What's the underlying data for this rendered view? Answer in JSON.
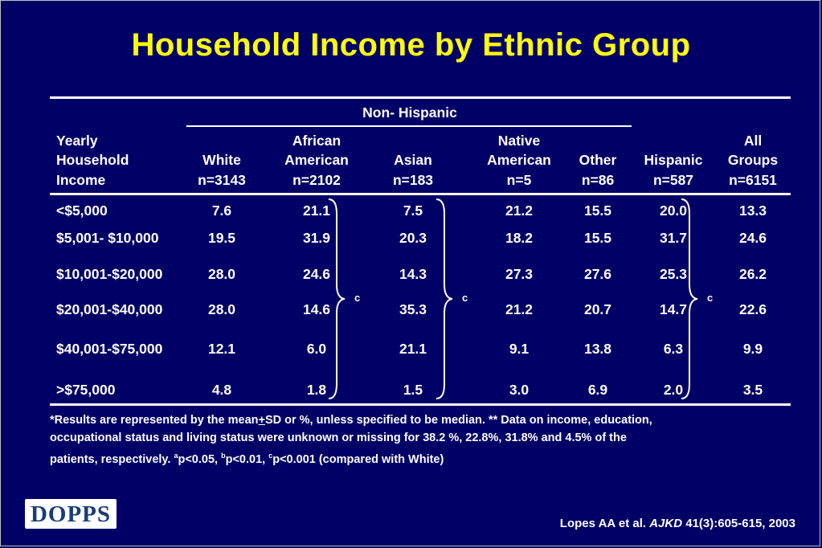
{
  "title": "Household Income by Ethnic Group",
  "group_header": "Non- Hispanic",
  "row_header": [
    "Yearly",
    "Household",
    "Income"
  ],
  "columns": [
    {
      "l1": "",
      "l2": "White",
      "n": "n=3143"
    },
    {
      "l1": "African",
      "l2": "American",
      "n": "n=2102"
    },
    {
      "l1": "",
      "l2": "Asian",
      "n": "n=183"
    },
    {
      "l1": "Native",
      "l2": "American",
      "n": "n=5"
    },
    {
      "l1": "",
      "l2": "Other",
      "n": "n=86"
    },
    {
      "l1": "",
      "l2": "Hispanic",
      "n": "n=587"
    },
    {
      "l1": "All",
      "l2": "Groups",
      "n": "n=6151"
    }
  ],
  "rows": [
    {
      "label": "<$5,000",
      "values": [
        "7.6",
        "21.1",
        "7.5",
        "21.2",
        "15.5",
        "20.0",
        "13.3"
      ]
    },
    {
      "label": "$5,001-  $10,000",
      "values": [
        "19.5",
        "31.9",
        "20.3",
        "18.2",
        "15.5",
        "31.7",
        "24.6"
      ]
    },
    {
      "label": "$10,001-$20,000",
      "values": [
        "28.0",
        "24.6",
        "14.3",
        "27.3",
        "27.6",
        "25.3",
        "26.2"
      ]
    },
    {
      "label": "$20,001-$40,000",
      "values": [
        "28.0",
        "14.6",
        "35.3",
        "21.2",
        "20.7",
        "14.7",
        "22.6"
      ]
    },
    {
      "label": "$40,001-$75,000",
      "values": [
        "12.1",
        "6.0",
        "21.1",
        "9.1",
        "13.8",
        "6.3",
        "9.9"
      ]
    },
    {
      "label": ">$75,000",
      "values": [
        "4.8",
        "1.8",
        "1.5",
        "3.0",
        "6.9",
        "2.0",
        "3.5"
      ]
    }
  ],
  "significance_mark": "c",
  "footnote": {
    "line1_pre": "*Results are represented by the mean",
    "pm": "+",
    "line1_post": "SD or %, unless specified to be median. ** Data on income, education,",
    "line2": "occupational status and living status were unknown or missing for 38.2 %, 22.8%, 31.8% and 4.5% of the",
    "line3_a": "patients, respectively. ",
    "sup_a": "a",
    "text_a": "p<0.05, ",
    "sup_b": "b",
    "text_b": "p<0.01, ",
    "sup_c": "c",
    "text_c": "p<0.001 (compared with White)"
  },
  "logo_text": "DOPPS",
  "citation": {
    "authors": "Lopes AA et al. ",
    "journal": "AJKD",
    "ref": " 41(3):605-615, 2003"
  }
}
